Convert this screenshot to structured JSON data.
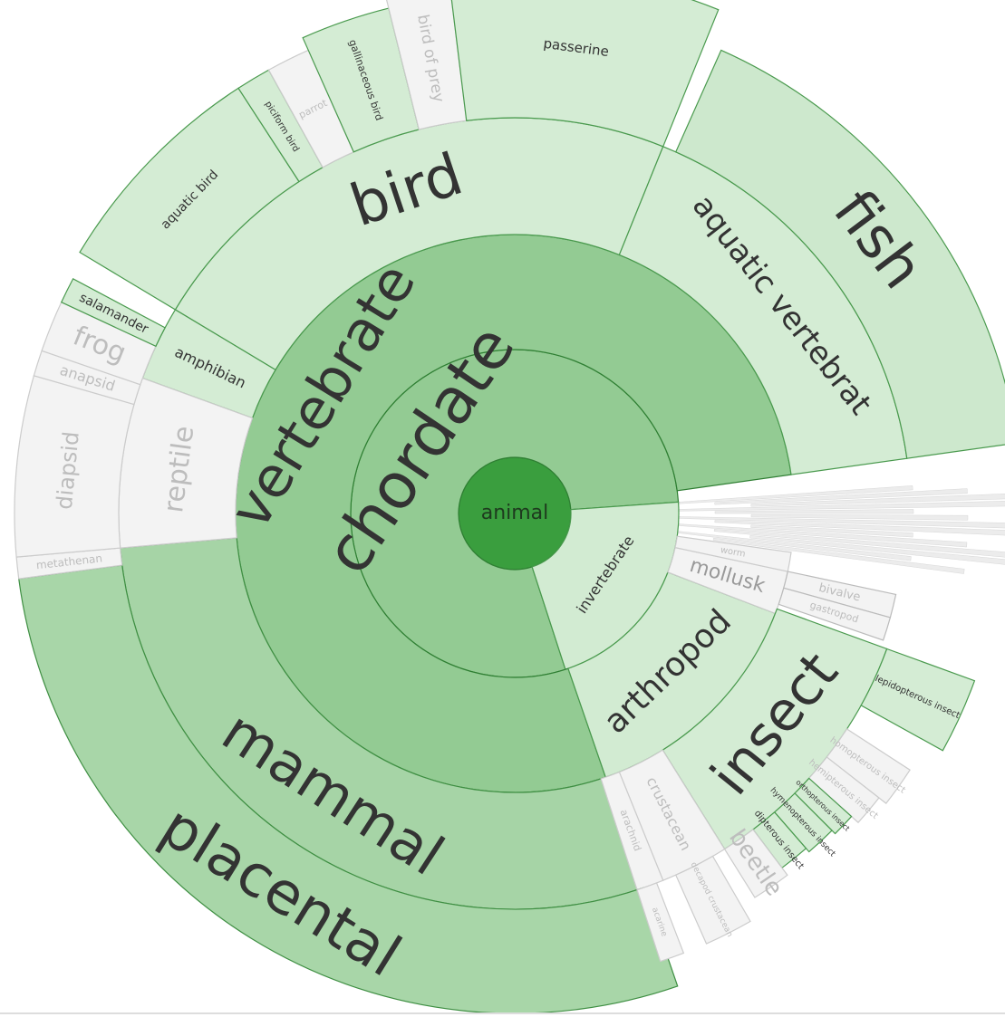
{
  "nodes": [
    {
      "label": "animal"
    },
    {
      "label": "chordate"
    },
    {
      "label": "invertebrate"
    },
    {
      "label": "vertebrate"
    },
    {
      "label": "arthropod"
    },
    {
      "label": "mollusk"
    },
    {
      "label": "worm"
    },
    {
      "label": "bird"
    },
    {
      "label": "mammal"
    },
    {
      "label": "aquatic vertebrat"
    },
    {
      "label": "amphibian"
    },
    {
      "label": "reptile"
    },
    {
      "label": "insect"
    },
    {
      "label": "crustacean"
    },
    {
      "label": "arachnid"
    },
    {
      "label": "bivalve"
    },
    {
      "label": "gastropod"
    },
    {
      "label": "placental"
    },
    {
      "label": "metathenan"
    },
    {
      "label": "fish"
    },
    {
      "label": "diapsid"
    },
    {
      "label": "anapsid"
    },
    {
      "label": "frog"
    },
    {
      "label": "salamander"
    },
    {
      "label": "aquatic bird"
    },
    {
      "label": "piciform bird"
    },
    {
      "label": "parrot"
    },
    {
      "label": "gallinaceous bird"
    },
    {
      "label": "bird of prey"
    },
    {
      "label": "passerine"
    },
    {
      "label": "lepidopterous insect"
    },
    {
      "label": "homopterous insect"
    },
    {
      "label": "hemipterous insect"
    },
    {
      "label": "orthopterous insect"
    },
    {
      "label": "hymenopterous insect"
    },
    {
      "label": "dipterous insect"
    },
    {
      "label": "beetle"
    },
    {
      "label": "decapod crustacean"
    },
    {
      "label": "acarine"
    }
  ]
}
